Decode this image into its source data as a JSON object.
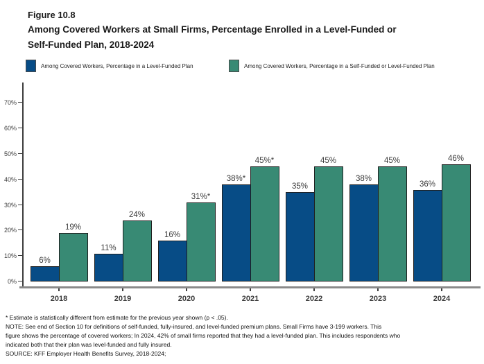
{
  "header": {
    "figure_label": "Figure 10.8",
    "title_line1": "Among Covered Workers at Small Firms, Percentage Enrolled in a Level-Funded or",
    "title_line2": "Self-Funded Plan, 2018-2024"
  },
  "legend": [
    {
      "label": "Among Covered Workers, Percentage in a Level-Funded Plan",
      "color": "#074C86"
    },
    {
      "label": "Among Covered Workers, Percentage in a Self-Funded or Level-Funded Plan",
      "color": "#388A74"
    }
  ],
  "chart_data": {
    "type": "bar",
    "categories": [
      "2018",
      "2019",
      "2020",
      "2021",
      "2022",
      "2023",
      "2024"
    ],
    "series": [
      {
        "name": "Among Covered Workers, Percentage in a Level-Funded Plan",
        "color": "#074C86",
        "values": [
          6,
          11,
          16,
          38,
          35,
          38,
          36
        ],
        "labels": [
          "6%",
          "11%",
          "16%",
          "38%*",
          "35%",
          "38%",
          "36%"
        ]
      },
      {
        "name": "Among Covered Workers, Percentage in a Self-Funded or Level-Funded Plan",
        "color": "#388A74",
        "values": [
          19,
          24,
          31,
          45,
          45,
          45,
          46
        ],
        "labels": [
          "19%",
          "24%",
          "31%*",
          "45%*",
          "45%",
          "45%",
          "46%"
        ]
      }
    ],
    "yticks": [
      "0%",
      "10%",
      "20%",
      "30%",
      "40%",
      "50%",
      "60%",
      "70%"
    ],
    "ytick_values": [
      0,
      10,
      20,
      30,
      40,
      50,
      60,
      70
    ],
    "ylim": [
      0,
      78
    ],
    "grid": false,
    "legend_position": "top",
    "xlabel": "",
    "ylabel": ""
  },
  "footnotes": {
    "lines": [
      "* Estimate is statistically different from estimate for the previous year shown (p < .05).",
      "NOTE: See end of Section 10 for definitions of self-funded, fully-insured, and level-funded premium plans. Small Firms have 3-199 workers. This",
      "figure shows the percentage of covered workers; In 2024, 42% of small firms reported that they had a level-funded plan. This includes respondents who",
      "indicated both that their plan was level-funded and fully insured.",
      "SOURCE: KFF Employer Health Benefits Survey, 2018-2024;"
    ]
  }
}
